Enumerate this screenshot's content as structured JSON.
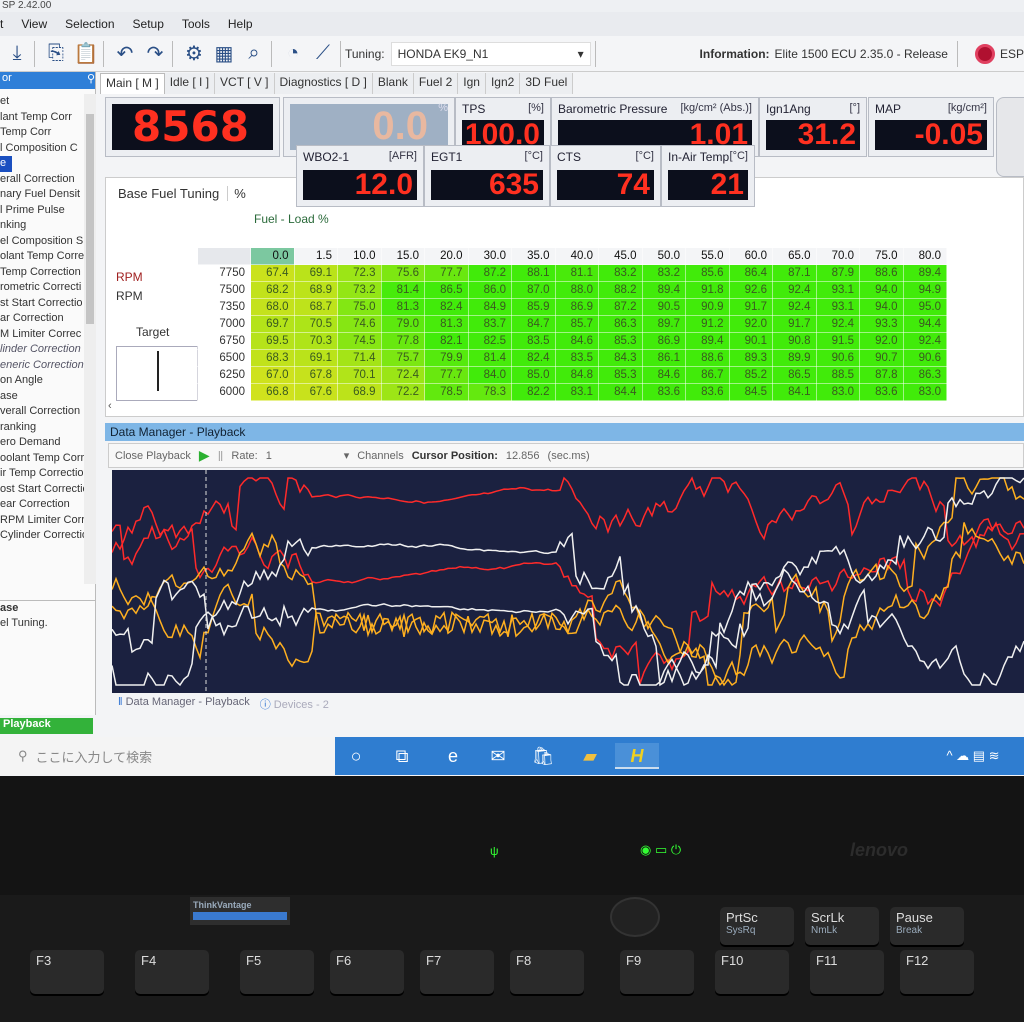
{
  "window": {
    "title": "SP 2.42.00"
  },
  "menu": [
    "t",
    "View",
    "Selection",
    "Setup",
    "Tools",
    "Help"
  ],
  "toolbar": {
    "tuning_label": "Tuning:",
    "tuning_value": "HONDA EK9_N1",
    "info_label": "Information:",
    "info_value": "Elite 1500 ECU 2.35.0 - Release",
    "logo_text": "ESP"
  },
  "left_panel": {
    "header": "or",
    "items": [
      "",
      "et",
      "lant Temp Corr",
      "Temp Corr",
      "l Composition C",
      "e",
      "erall Correction",
      "nary Fuel Densit",
      "l Prime Pulse",
      "nking",
      "el Composition S",
      "olant Temp Corre",
      "Temp Correction",
      "rometric Correcti",
      "st Start Correctio",
      "ar Correction",
      "M Limiter Correc",
      "linder Correction",
      "eneric Correction:",
      "on Angle",
      "ase",
      "verall Correction",
      "ranking",
      "ero Demand",
      "oolant Temp Corre",
      "ir Temp Correction",
      "ost Start Correctio",
      "ear Correction",
      "RPM Limiter Correc",
      "Cylinder Correction"
    ],
    "desc_line1": "ase",
    "desc_line2": "el Tuning."
  },
  "tabs": [
    "Main [ M ]",
    "Idle [ I ]",
    "VCT [ V ]",
    "Diagnostics [ D ]",
    "Blank",
    "Fuel 2",
    "Ign",
    "Ign2",
    "3D Fuel"
  ],
  "gauges": {
    "rpm": {
      "value": "8568"
    },
    "load": {
      "value": "0.0",
      "unit": "%"
    },
    "tps": {
      "label": "TPS",
      "unit": "[%]",
      "value": "100.0"
    },
    "baro": {
      "label": "Barometric Pressure",
      "unit": "[kg/cm² (Abs.)]",
      "value": "1.01"
    },
    "ign": {
      "label": "Ign1Ang",
      "unit": "[°]",
      "value": "31.2"
    },
    "map": {
      "label": "MAP",
      "unit": "[kg/cm²]",
      "value": "-0.05"
    },
    "wbo2": {
      "label": "WBO2-1",
      "unit": "[AFR]",
      "value": "12.0"
    },
    "egt": {
      "label": "EGT1",
      "unit": "[°C]",
      "value": "635"
    },
    "cts": {
      "label": "CTS",
      "unit": "[°C]",
      "value": "74"
    },
    "iat": {
      "label": "In-Air Temp",
      "unit": "[°C]",
      "value": "21"
    }
  },
  "fuel_panel": {
    "tab": "Base Fuel Tuning",
    "unit_tab": "%",
    "axis_title": "Fuel - Load  %",
    "row_axis_1": "RPM",
    "row_axis_2": "RPM",
    "target_label": "Target"
  },
  "fuel_table": {
    "columns": [
      "0.0",
      "1.5",
      "10.0",
      "15.0",
      "20.0",
      "30.0",
      "35.0",
      "40.0",
      "45.0",
      "50.0",
      "55.0",
      "60.0",
      "65.0",
      "70.0",
      "75.0",
      "80.0"
    ],
    "rows": [
      {
        "rpm": "7750",
        "values": [
          "67.4",
          "69.1",
          "72.3",
          "75.6",
          "77.7",
          "87.2",
          "88.1",
          "81.1",
          "83.2",
          "83.2",
          "85.6",
          "86.4",
          "87.1",
          "87.9",
          "88.6",
          "89.4"
        ]
      },
      {
        "rpm": "7500",
        "values": [
          "68.2",
          "68.9",
          "73.2",
          "81.4",
          "86.5",
          "86.0",
          "87.0",
          "88.0",
          "88.2",
          "89.4",
          "91.8",
          "92.6",
          "92.4",
          "93.1",
          "94.0",
          "94.9"
        ]
      },
      {
        "rpm": "7350",
        "values": [
          "68.0",
          "68.7",
          "75.0",
          "81.3",
          "82.4",
          "84.9",
          "85.9",
          "86.9",
          "87.2",
          "90.5",
          "90.9",
          "91.7",
          "92.4",
          "93.1",
          "94.0",
          "95.0"
        ]
      },
      {
        "rpm": "7000",
        "values": [
          "69.7",
          "70.5",
          "74.6",
          "79.0",
          "81.3",
          "83.7",
          "84.7",
          "85.7",
          "86.3",
          "89.7",
          "91.2",
          "92.0",
          "91.7",
          "92.4",
          "93.3",
          "94.4"
        ]
      },
      {
        "rpm": "6750",
        "values": [
          "69.5",
          "70.3",
          "74.5",
          "77.8",
          "82.1",
          "82.5",
          "83.5",
          "84.6",
          "85.3",
          "86.9",
          "89.4",
          "90.1",
          "90.8",
          "91.5",
          "92.0",
          "92.4"
        ]
      },
      {
        "rpm": "6500",
        "values": [
          "68.3",
          "69.1",
          "71.4",
          "75.7",
          "79.9",
          "81.4",
          "82.4",
          "83.5",
          "84.3",
          "86.1",
          "88.6",
          "89.3",
          "89.9",
          "90.6",
          "90.7",
          "90.6"
        ]
      },
      {
        "rpm": "6250",
        "values": [
          "67.0",
          "67.8",
          "70.1",
          "72.4",
          "77.7",
          "84.0",
          "85.0",
          "84.8",
          "85.3",
          "84.6",
          "86.7",
          "85.2",
          "86.5",
          "88.5",
          "87.8",
          "86.3"
        ]
      },
      {
        "rpm": "6000",
        "values": [
          "66.8",
          "67.6",
          "68.9",
          "72.2",
          "78.5",
          "78.3",
          "82.2",
          "83.1",
          "84.4",
          "83.6",
          "83.6",
          "84.5",
          "84.1",
          "83.0",
          "83.6",
          "83.0"
        ]
      }
    ]
  },
  "data_manager": {
    "title": "Data Manager - Playback",
    "close": "Close Playback",
    "rate_label": "Rate:",
    "rate_value": "1",
    "channels": "Channels",
    "cursor_label": "Cursor Position:",
    "cursor_value": "12.856",
    "cursor_unit": "(sec.ms)",
    "trace_colors": [
      "#ff2a2a",
      "#ffb020",
      "#f0f0f0"
    ]
  },
  "bottom_tabs": [
    "Data Manager - Playback",
    "Devices - 2"
  ],
  "status": {
    "playback": "Playback"
  },
  "taskbar": {
    "search_placeholder": "ここに入力して検索"
  },
  "laptop": {
    "brand": "lenovo",
    "thinkvantage": "ThinkVantage"
  },
  "keys": [
    {
      "label": "F3",
      "sub": ""
    },
    {
      "label": "F4",
      "sub": ""
    },
    {
      "label": "F5",
      "sub": ""
    },
    {
      "label": "F6",
      "sub": ""
    },
    {
      "label": "F7",
      "sub": ""
    },
    {
      "label": "F8",
      "sub": ""
    },
    {
      "label": "F9",
      "sub": ""
    },
    {
      "label": "F10",
      "sub": ""
    },
    {
      "label": "F11",
      "sub": ""
    },
    {
      "label": "F12",
      "sub": ""
    },
    {
      "label": "PrtSc",
      "sub": "SysRq"
    },
    {
      "label": "ScrLk",
      "sub": "NmLk"
    },
    {
      "label": "Pause",
      "sub": "Break"
    }
  ]
}
